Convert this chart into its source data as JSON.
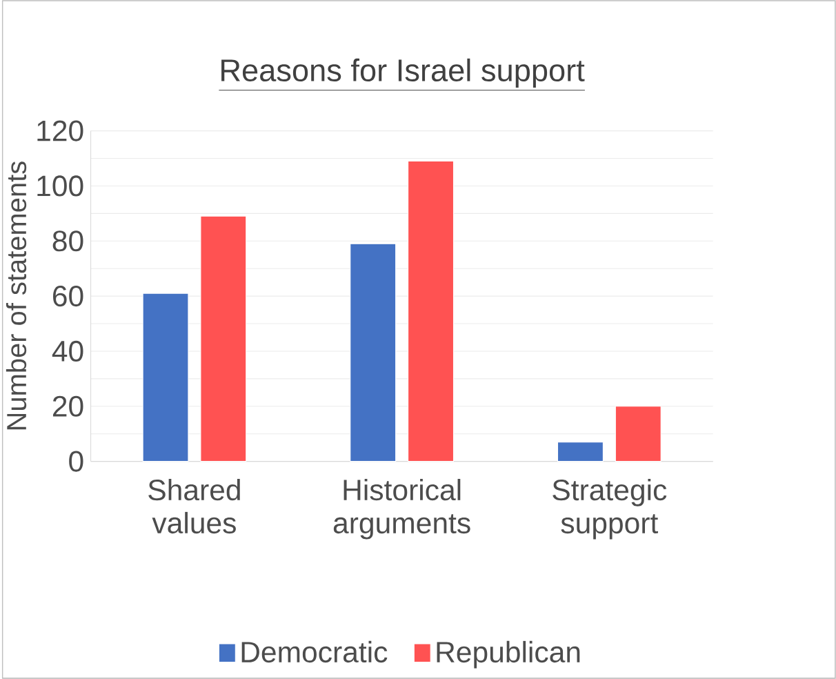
{
  "chart_data": {
    "type": "bar",
    "title": "Reasons for Israel support",
    "ylabel": "Number of statements",
    "categories": [
      "Shared values",
      "Historical arguments",
      "Strategic support"
    ],
    "series": [
      {
        "name": "Democratic",
        "color": "#4472c4",
        "values": [
          61,
          79,
          7
        ]
      },
      {
        "name": "Republican",
        "color": "#ff5252",
        "values": [
          89,
          109,
          20
        ]
      }
    ],
    "ylim": [
      0,
      120
    ],
    "yticks": [
      0,
      {
        "value": 10,
        "label": null
      },
      20,
      {
        "value": 30,
        "label": null
      },
      40,
      {
        "value": 50,
        "label": null
      },
      60,
      {
        "value": 70,
        "label": null
      },
      80,
      {
        "value": 90,
        "label": null
      },
      100,
      {
        "value": 110,
        "label": null
      },
      120
    ],
    "grid": "y",
    "legend": "bottom"
  }
}
